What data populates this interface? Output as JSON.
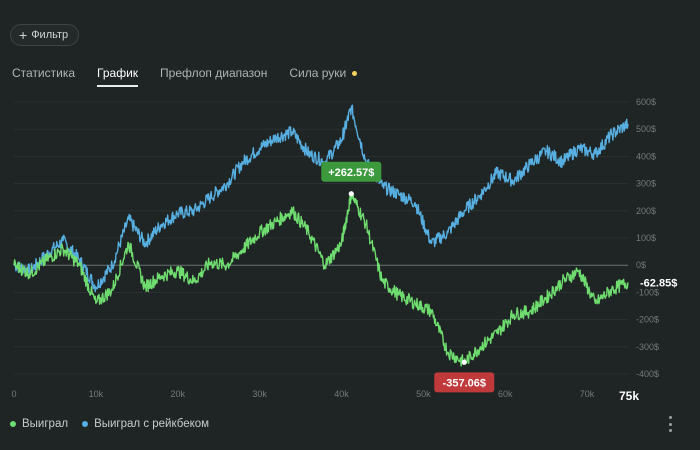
{
  "filter": {
    "label": "Фильтр",
    "icon": "plus-icon"
  },
  "tabs": [
    {
      "label": "Статистика",
      "active": false
    },
    {
      "label": "График",
      "active": true
    },
    {
      "label": "Префлоп диапазон",
      "active": false
    },
    {
      "label": "Сила руки",
      "active": false,
      "has_dot": true
    }
  ],
  "chart_data": {
    "type": "line",
    "xlim": [
      0,
      75000
    ],
    "ylim": [
      -400,
      600
    ],
    "x_tick_values": [
      0,
      10000,
      20000,
      30000,
      40000,
      50000,
      60000,
      70000
    ],
    "x_tick_labels": [
      "0",
      "10k",
      "20k",
      "30k",
      "40k",
      "50k",
      "60k",
      "70k"
    ],
    "x_end_label": "75k",
    "y_tick_values": [
      600,
      500,
      400,
      300,
      200,
      100,
      0,
      -100,
      -200,
      -300,
      -400
    ],
    "y_tick_labels": [
      "600$",
      "500$",
      "400$",
      "300$",
      "200$",
      "100$",
      "0$",
      "-100$",
      "-200$",
      "-300$",
      "-400$"
    ],
    "zero_line": true,
    "legend_position": "bottom-left",
    "series": [
      {
        "name": "Выиграл",
        "color": "#6fdc6f",
        "x": [
          0,
          2000,
          4000,
          6000,
          8000,
          10000,
          12000,
          14000,
          16000,
          18000,
          20000,
          22000,
          24000,
          26000,
          28000,
          30000,
          32000,
          34000,
          36000,
          38000,
          40000,
          41200,
          43000,
          45000,
          47000,
          49000,
          51000,
          53000,
          55000,
          57000,
          59000,
          61000,
          63000,
          65000,
          67000,
          69000,
          71000,
          73000,
          75000
        ],
        "values": [
          0,
          -30,
          20,
          60,
          0,
          -140,
          -90,
          80,
          -80,
          -40,
          -20,
          -60,
          10,
          0,
          60,
          120,
          160,
          200,
          120,
          0,
          80,
          262.57,
          150,
          -60,
          -110,
          -140,
          -170,
          -320,
          -357.06,
          -300,
          -250,
          -180,
          -170,
          -120,
          -60,
          -20,
          -140,
          -90,
          -62.85
        ]
      },
      {
        "name": "Выиграл с рейкбеком",
        "color": "#57aee0",
        "x": [
          0,
          2000,
          4000,
          6000,
          8000,
          10000,
          12000,
          14000,
          16000,
          18000,
          20000,
          22000,
          24000,
          26000,
          28000,
          30000,
          32000,
          34000,
          36000,
          38000,
          40000,
          41200,
          43000,
          45000,
          47000,
          49000,
          51000,
          53000,
          55000,
          57000,
          59000,
          61000,
          63000,
          65000,
          67000,
          69000,
          71000,
          73000,
          75000
        ],
        "values": [
          0,
          -20,
          40,
          90,
          20,
          -80,
          0,
          170,
          80,
          150,
          190,
          200,
          250,
          300,
          380,
          430,
          470,
          490,
          410,
          380,
          460,
          580,
          380,
          290,
          260,
          230,
          80,
          120,
          200,
          260,
          340,
          310,
          370,
          420,
          380,
          430,
          410,
          480,
          520
        ]
      }
    ],
    "annotations": [
      {
        "label": "+262.57$",
        "series": "Выиграл",
        "x": 41200,
        "y": 262.57,
        "color": "#3c9a3c"
      },
      {
        "label": "-357.06$",
        "series": "Выиграл",
        "x": 55000,
        "y": -357.06,
        "color": "#c0393b"
      }
    ],
    "end_value_label": "-62.85$"
  },
  "legend": [
    {
      "label": "Выиграл",
      "color": "#6fdc6f"
    },
    {
      "label": "Выиграл с рейкбеком",
      "color": "#57aee0"
    }
  ],
  "menu": {
    "icon": "more-vertical-icon"
  }
}
